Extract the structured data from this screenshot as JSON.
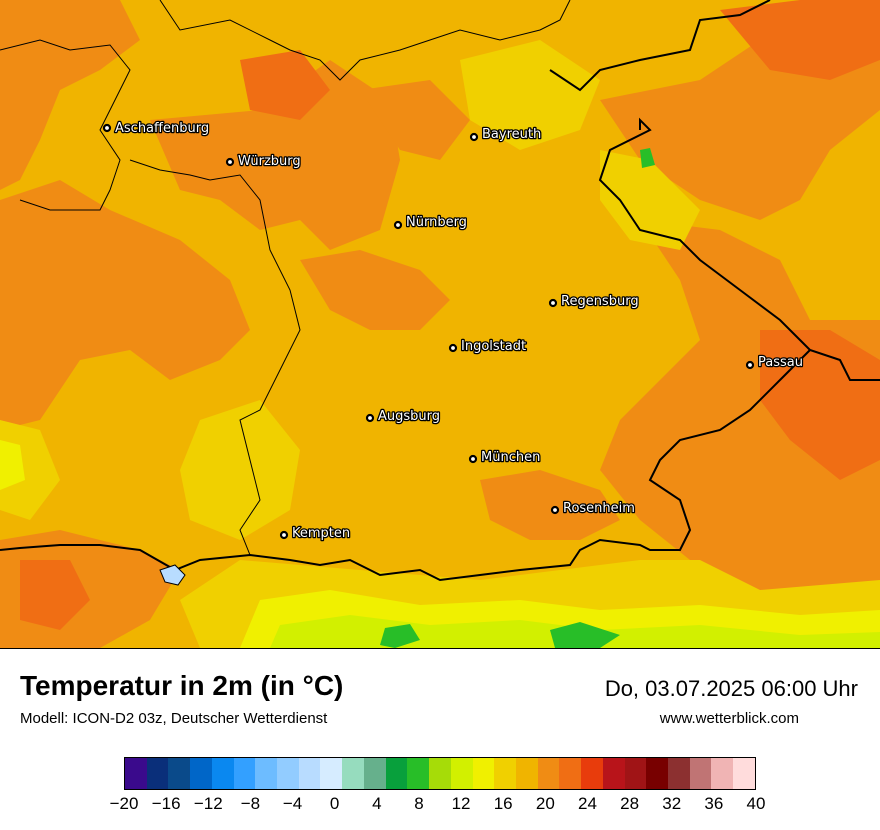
{
  "map": {
    "cities": [
      {
        "name": "Aschaffenburg"
      },
      {
        "name": "Würzburg"
      },
      {
        "name": "Bayreuth"
      },
      {
        "name": "Nürnberg"
      },
      {
        "name": "Regensburg"
      },
      {
        "name": "Ingolstadt"
      },
      {
        "name": "Passau"
      },
      {
        "name": "Augsburg"
      },
      {
        "name": "München"
      },
      {
        "name": "Rosenheim"
      },
      {
        "name": "Kempten"
      }
    ]
  },
  "header": {
    "title": "Temperatur in 2m (in °C)",
    "subtitle": "Modell: ICON-D2 03z, Deutscher Wetterdienst",
    "datetime": "Do, 03.07.2025 06:00 Uhr",
    "website": "www.wetterblick.com"
  },
  "legend": {
    "colors": [
      "#3a0a8c",
      "#0a2f7a",
      "#0a4a8a",
      "#0066c8",
      "#0a88f0",
      "#33a0ff",
      "#6dbcff",
      "#92ccff",
      "#b8dcff",
      "#d6ecff",
      "#96dcbe",
      "#66b08c",
      "#08a03c",
      "#28be28",
      "#a6dc08",
      "#d2f000",
      "#f0f000",
      "#f0d000",
      "#f0b400",
      "#f08c14",
      "#f06e14",
      "#e83c0c",
      "#b8141a",
      "#a01416",
      "#780000",
      "#8c3030",
      "#c07474",
      "#f0b4b4",
      "#ffdcdc"
    ],
    "ticks": [
      "−20",
      "−16",
      "−12",
      "−8",
      "−4",
      "0",
      "4",
      "8",
      "12",
      "16",
      "20",
      "24",
      "28",
      "32",
      "36",
      "40"
    ]
  }
}
